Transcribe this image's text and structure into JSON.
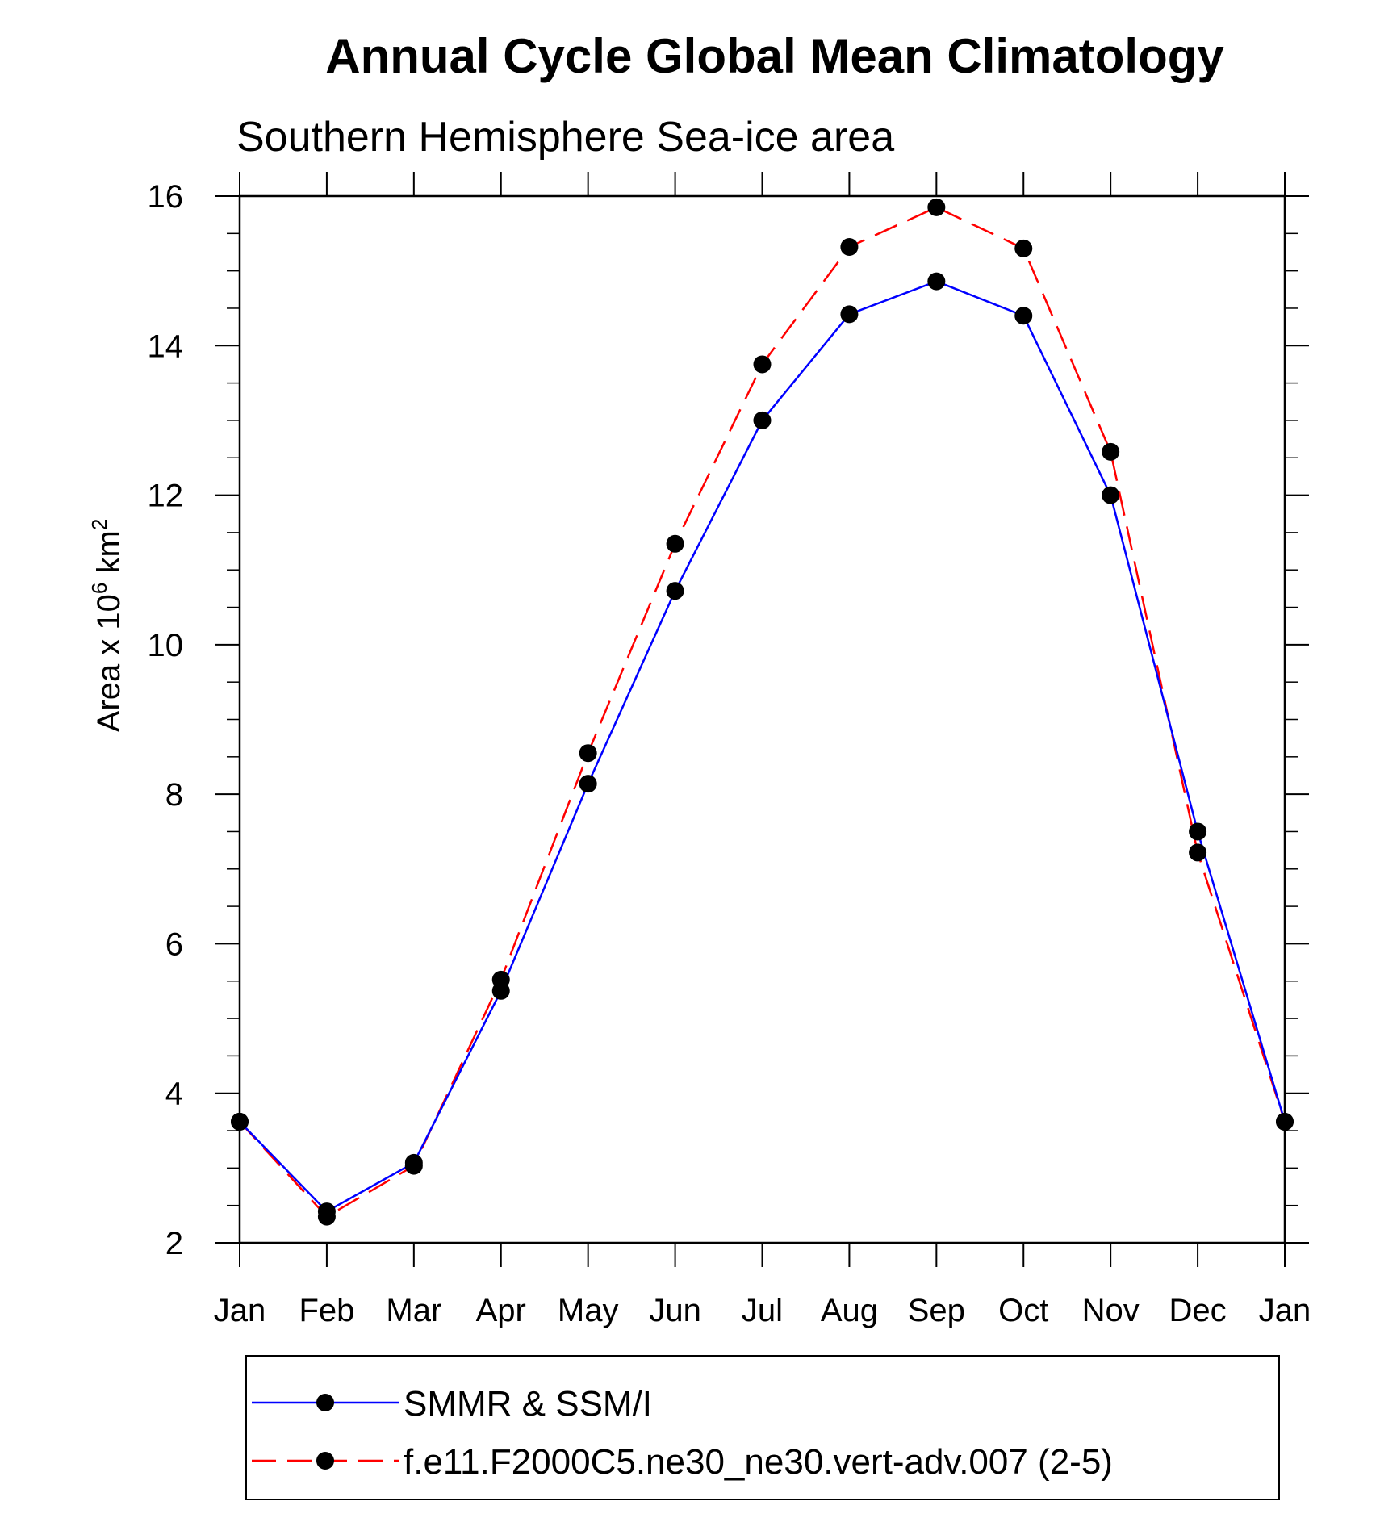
{
  "chart_data": {
    "type": "line",
    "title": "Annual Cycle Global Mean Climatology",
    "subtitle": "Southern Hemisphere Sea-ice area",
    "ylabel_main": "Area x 10",
    "ylabel_exp": "6",
    "ylabel_unit": " km",
    "ylabel_unit_exp": "2",
    "xlabel": "",
    "categories": [
      "Jan",
      "Feb",
      "Mar",
      "Apr",
      "May",
      "Jun",
      "Jul",
      "Aug",
      "Sep",
      "Oct",
      "Nov",
      "Dec",
      "Jan"
    ],
    "ylim": [
      2,
      16
    ],
    "yticks": [
      2,
      4,
      6,
      8,
      10,
      12,
      14,
      16
    ],
    "legend_position": "bottom",
    "series": [
      {
        "name": "SMMR & SSM/I",
        "color": "#0000ff",
        "style": "solid",
        "values": [
          3.62,
          2.42,
          3.07,
          5.37,
          8.14,
          10.72,
          13.0,
          14.42,
          14.86,
          14.4,
          12.0,
          7.5,
          3.62
        ]
      },
      {
        "name": "f.e11.F2000C5.ne30_ne30.vert-adv.007 (2-5)",
        "color": "#ff0000",
        "style": "dashed",
        "values": [
          3.62,
          2.35,
          3.03,
          5.52,
          8.55,
          11.35,
          13.75,
          15.32,
          15.85,
          15.3,
          12.58,
          7.22,
          3.62
        ]
      }
    ]
  }
}
